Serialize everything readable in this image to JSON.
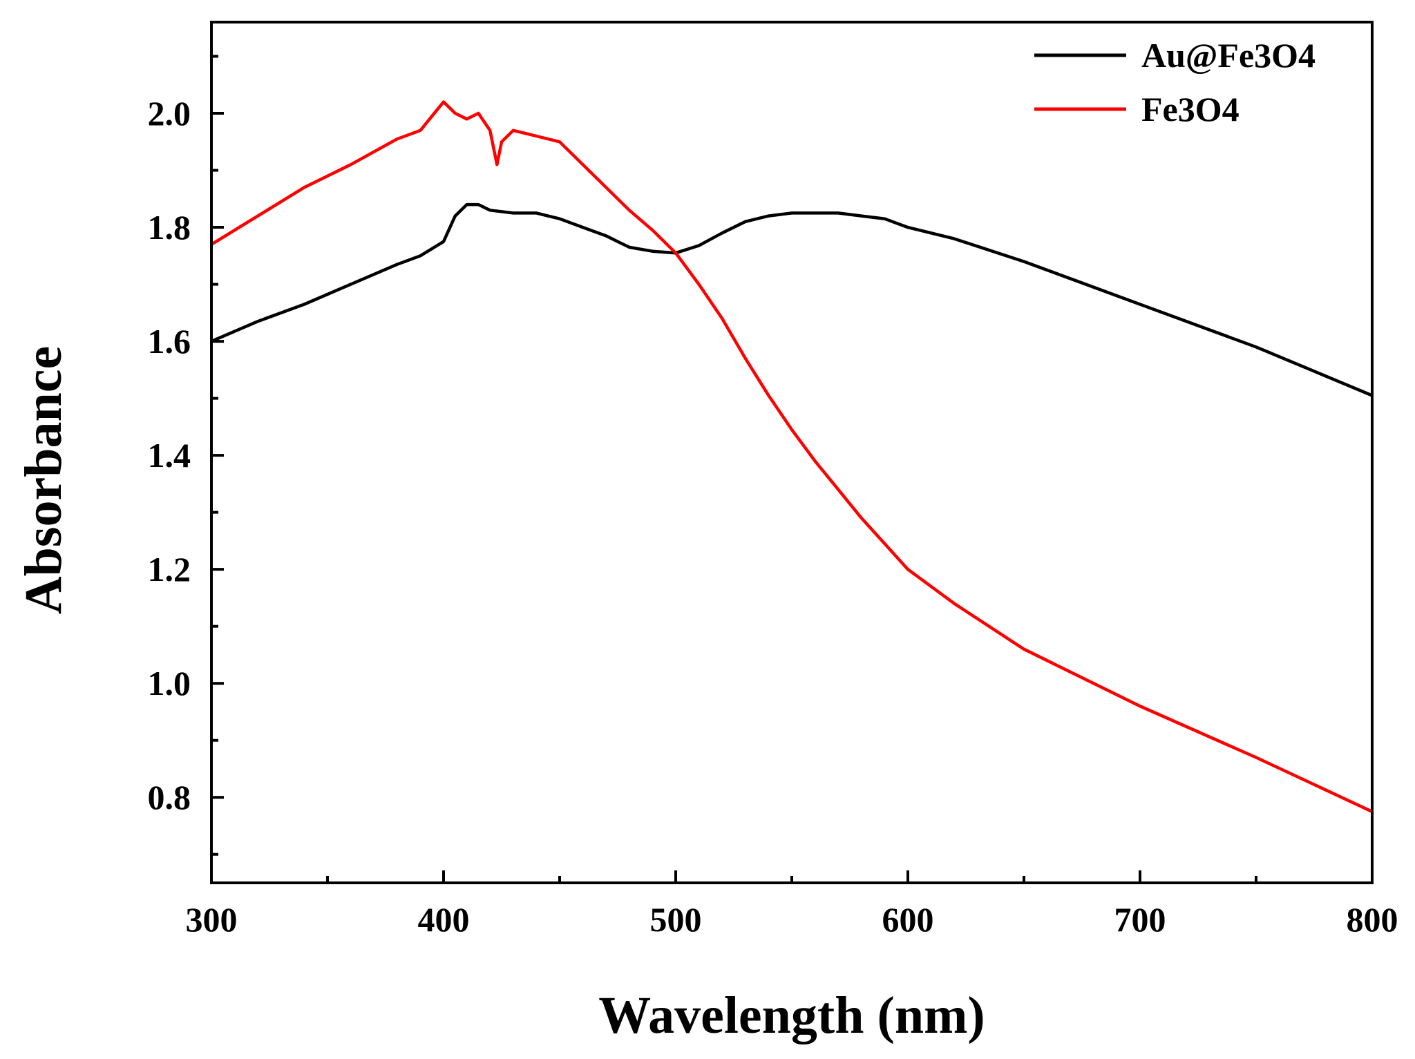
{
  "chart_data": {
    "type": "line",
    "xlabel": "Wavelength (nm)",
    "ylabel": "Absorbance",
    "xlim": [
      300,
      800
    ],
    "ylim": [
      0.65,
      2.16
    ],
    "x_ticks": [
      300,
      400,
      500,
      600,
      700,
      800
    ],
    "x_tick_labels": [
      "300",
      "400",
      "500",
      "600",
      "700",
      "800"
    ],
    "y_ticks": [
      0.8,
      1.0,
      1.2,
      1.4,
      1.6,
      1.8,
      2.0
    ],
    "y_tick_labels": [
      "0.8",
      "1.0",
      "1.2",
      "1.4",
      "1.6",
      "1.8",
      "2.0"
    ],
    "grid": false,
    "legend_position": "top-right",
    "series": [
      {
        "name": "Au@Fe3O4",
        "color": "#000000",
        "x": [
          300,
          320,
          340,
          360,
          380,
          390,
          400,
          405,
          410,
          415,
          420,
          430,
          440,
          450,
          460,
          470,
          480,
          490,
          500,
          510,
          520,
          530,
          540,
          550,
          560,
          570,
          580,
          590,
          600,
          620,
          650,
          700,
          750,
          800
        ],
        "y": [
          1.6,
          1.635,
          1.665,
          1.7,
          1.735,
          1.75,
          1.775,
          1.82,
          1.84,
          1.84,
          1.83,
          1.825,
          1.825,
          1.815,
          1.8,
          1.785,
          1.765,
          1.758,
          1.755,
          1.768,
          1.79,
          1.81,
          1.82,
          1.825,
          1.825,
          1.825,
          1.82,
          1.815,
          1.8,
          1.78,
          1.74,
          1.665,
          1.59,
          1.505
        ]
      },
      {
        "name": "Fe3O4",
        "color": "#ff0000",
        "x": [
          300,
          320,
          340,
          360,
          380,
          390,
          400,
          405,
          410,
          415,
          420,
          423,
          425,
          430,
          440,
          450,
          460,
          470,
          480,
          490,
          500,
          510,
          520,
          530,
          540,
          550,
          560,
          570,
          580,
          590,
          600,
          620,
          650,
          700,
          750,
          800
        ],
        "y": [
          1.77,
          1.82,
          1.87,
          1.91,
          1.955,
          1.97,
          2.02,
          2.0,
          1.99,
          2.0,
          1.97,
          1.91,
          1.95,
          1.97,
          1.96,
          1.95,
          1.91,
          1.87,
          1.83,
          1.795,
          1.755,
          1.7,
          1.64,
          1.57,
          1.505,
          1.445,
          1.39,
          1.34,
          1.29,
          1.245,
          1.2,
          1.14,
          1.06,
          0.96,
          0.87,
          0.775
        ]
      }
    ]
  }
}
